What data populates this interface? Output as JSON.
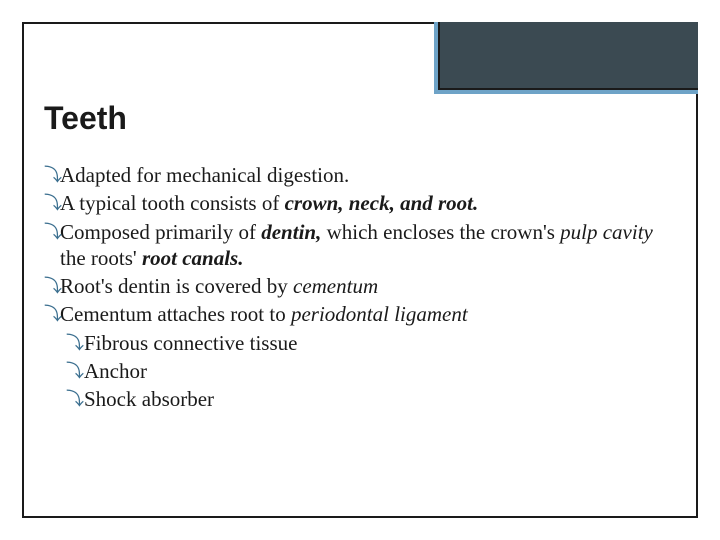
{
  "colors": {
    "corner_fill": "#3b4a52",
    "corner_accent": "#6ea3c7",
    "border": "#1a1a1a",
    "text": "#1a1a1a",
    "bullet": "#3b6f8f",
    "background": "#ffffff"
  },
  "title": {
    "text": "Teeth",
    "font_family": "Arial",
    "font_weight": 700,
    "font_size_pt": 24
  },
  "body_font": {
    "family": "Georgia/Times",
    "size_pt": 16,
    "line_height": 1.25
  },
  "bullet_glyph": "⤵",
  "bullets": [
    {
      "level": 1,
      "segments": [
        {
          "t": "Adapted for mechanical digestion.",
          "s": "plain"
        }
      ]
    },
    {
      "level": 1,
      "segments": [
        {
          "t": "A typical tooth consists of  ",
          "s": "plain"
        },
        {
          "t": "crown, neck, and root.",
          "s": "bolditalic"
        }
      ]
    },
    {
      "level": 1,
      "segments": [
        {
          "t": "Composed primarily of ",
          "s": "plain"
        },
        {
          "t": "dentin,",
          "s": "bolditalic"
        },
        {
          "t": " which encloses the crown's  ",
          "s": "plain"
        },
        {
          "t": "pulp cavity",
          "s": "italic"
        },
        {
          "t": " the roots' ",
          "s": "plain"
        },
        {
          "t": "root canals.",
          "s": "bolditalic"
        }
      ]
    },
    {
      "level": 1,
      "segments": [
        {
          "t": "Root's dentin is covered by ",
          "s": "plain"
        },
        {
          "t": "cementum",
          "s": "italic"
        }
      ]
    },
    {
      "level": 1,
      "segments": [
        {
          "t": "Cementum attaches root to ",
          "s": "plain"
        },
        {
          "t": "periodontal ligament",
          "s": "italic"
        }
      ]
    },
    {
      "level": 2,
      "segments": [
        {
          "t": "Fibrous connective tissue",
          "s": "plain"
        }
      ]
    },
    {
      "level": 2,
      "segments": [
        {
          "t": "Anchor",
          "s": "plain"
        }
      ]
    },
    {
      "level": 2,
      "segments": [
        {
          "t": "Shock absorber",
          "s": "plain"
        }
      ]
    }
  ]
}
